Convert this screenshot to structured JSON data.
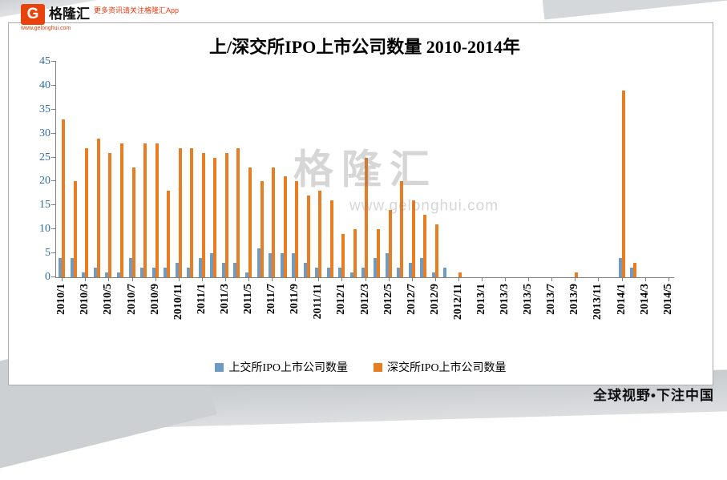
{
  "header": {
    "logo_letter": "G",
    "brand": "格隆汇",
    "brand_url": "www.gelonghui.com",
    "tagline": "更多资讯请关注格隆汇App",
    "brand_color": "#E8420D"
  },
  "watermark": {
    "text": "格隆汇",
    "url": "www.gelonghui.com"
  },
  "footer": {
    "slogan": "全球视野•下注中国"
  },
  "chart_data": {
    "type": "bar",
    "title": "上/深交所IPO上市公司数量 2010-2014年",
    "xlabel": "",
    "ylabel": "",
    "ylim": [
      0,
      45
    ],
    "y_tick_step": 5,
    "y_label_color": "#2E6DA8",
    "axis_color": "#7F7F7F",
    "grid": false,
    "legend_position": "bottom",
    "categories": [
      "2010/1",
      "2010/2",
      "2010/3",
      "2010/4",
      "2010/5",
      "2010/6",
      "2010/7",
      "2010/8",
      "2010/9",
      "2010/10",
      "2010/11",
      "2010/12",
      "2011/1",
      "2011/2",
      "2011/3",
      "2011/4",
      "2011/5",
      "2011/6",
      "2011/7",
      "2011/8",
      "2011/9",
      "2011/10",
      "2011/11",
      "2011/12",
      "2012/1",
      "2012/2",
      "2012/3",
      "2012/4",
      "2012/5",
      "2012/6",
      "2012/7",
      "2012/8",
      "2012/9",
      "2012/10",
      "2012/11",
      "2012/12",
      "2013/1",
      "2013/2",
      "2013/3",
      "2013/4",
      "2013/5",
      "2013/6",
      "2013/7",
      "2013/8",
      "2013/9",
      "2013/10",
      "2013/11",
      "2013/12",
      "2014/1",
      "2014/2",
      "2014/3",
      "2014/4",
      "2014/5"
    ],
    "x_tick_labels": [
      "2010/1",
      "2010/3",
      "2010/5",
      "2010/7",
      "2010/9",
      "2010/11",
      "2011/1",
      "2011/3",
      "2011/5",
      "2011/7",
      "2011/9",
      "2011/11",
      "2012/1",
      "2012/3",
      "2012/5",
      "2012/7",
      "2012/9",
      "2012/11",
      "2013/1",
      "2013/3",
      "2013/5",
      "2013/7",
      "2013/9",
      "2013/11",
      "2014/1",
      "2014/3",
      "2014/5"
    ],
    "series": [
      {
        "name": "上交所IPO上市公司数量",
        "color": "#6D9BC4",
        "values": [
          4,
          4,
          1,
          2,
          1,
          1,
          4,
          2,
          2,
          2,
          3,
          2,
          4,
          5,
          3,
          3,
          1,
          6,
          5,
          5,
          5,
          3,
          2,
          2,
          2,
          1,
          2,
          4,
          5,
          2,
          3,
          4,
          1,
          2,
          0,
          0,
          0,
          0,
          0,
          0,
          0,
          0,
          0,
          0,
          0,
          0,
          0,
          0,
          4,
          2,
          0,
          0,
          0
        ]
      },
      {
        "name": "深交所IPO上市公司数量",
        "color": "#E87D22",
        "values": [
          33,
          20,
          27,
          29,
          26,
          28,
          23,
          28,
          28,
          18,
          27,
          27,
          26,
          25,
          26,
          27,
          23,
          20,
          23,
          21,
          20,
          17,
          18,
          16,
          9,
          10,
          25,
          10,
          14,
          20,
          16,
          13,
          11,
          0,
          1,
          0,
          0,
          0,
          0,
          0,
          0,
          0,
          0,
          0,
          1,
          0,
          0,
          0,
          39,
          3,
          0,
          0,
          0
        ]
      }
    ]
  }
}
